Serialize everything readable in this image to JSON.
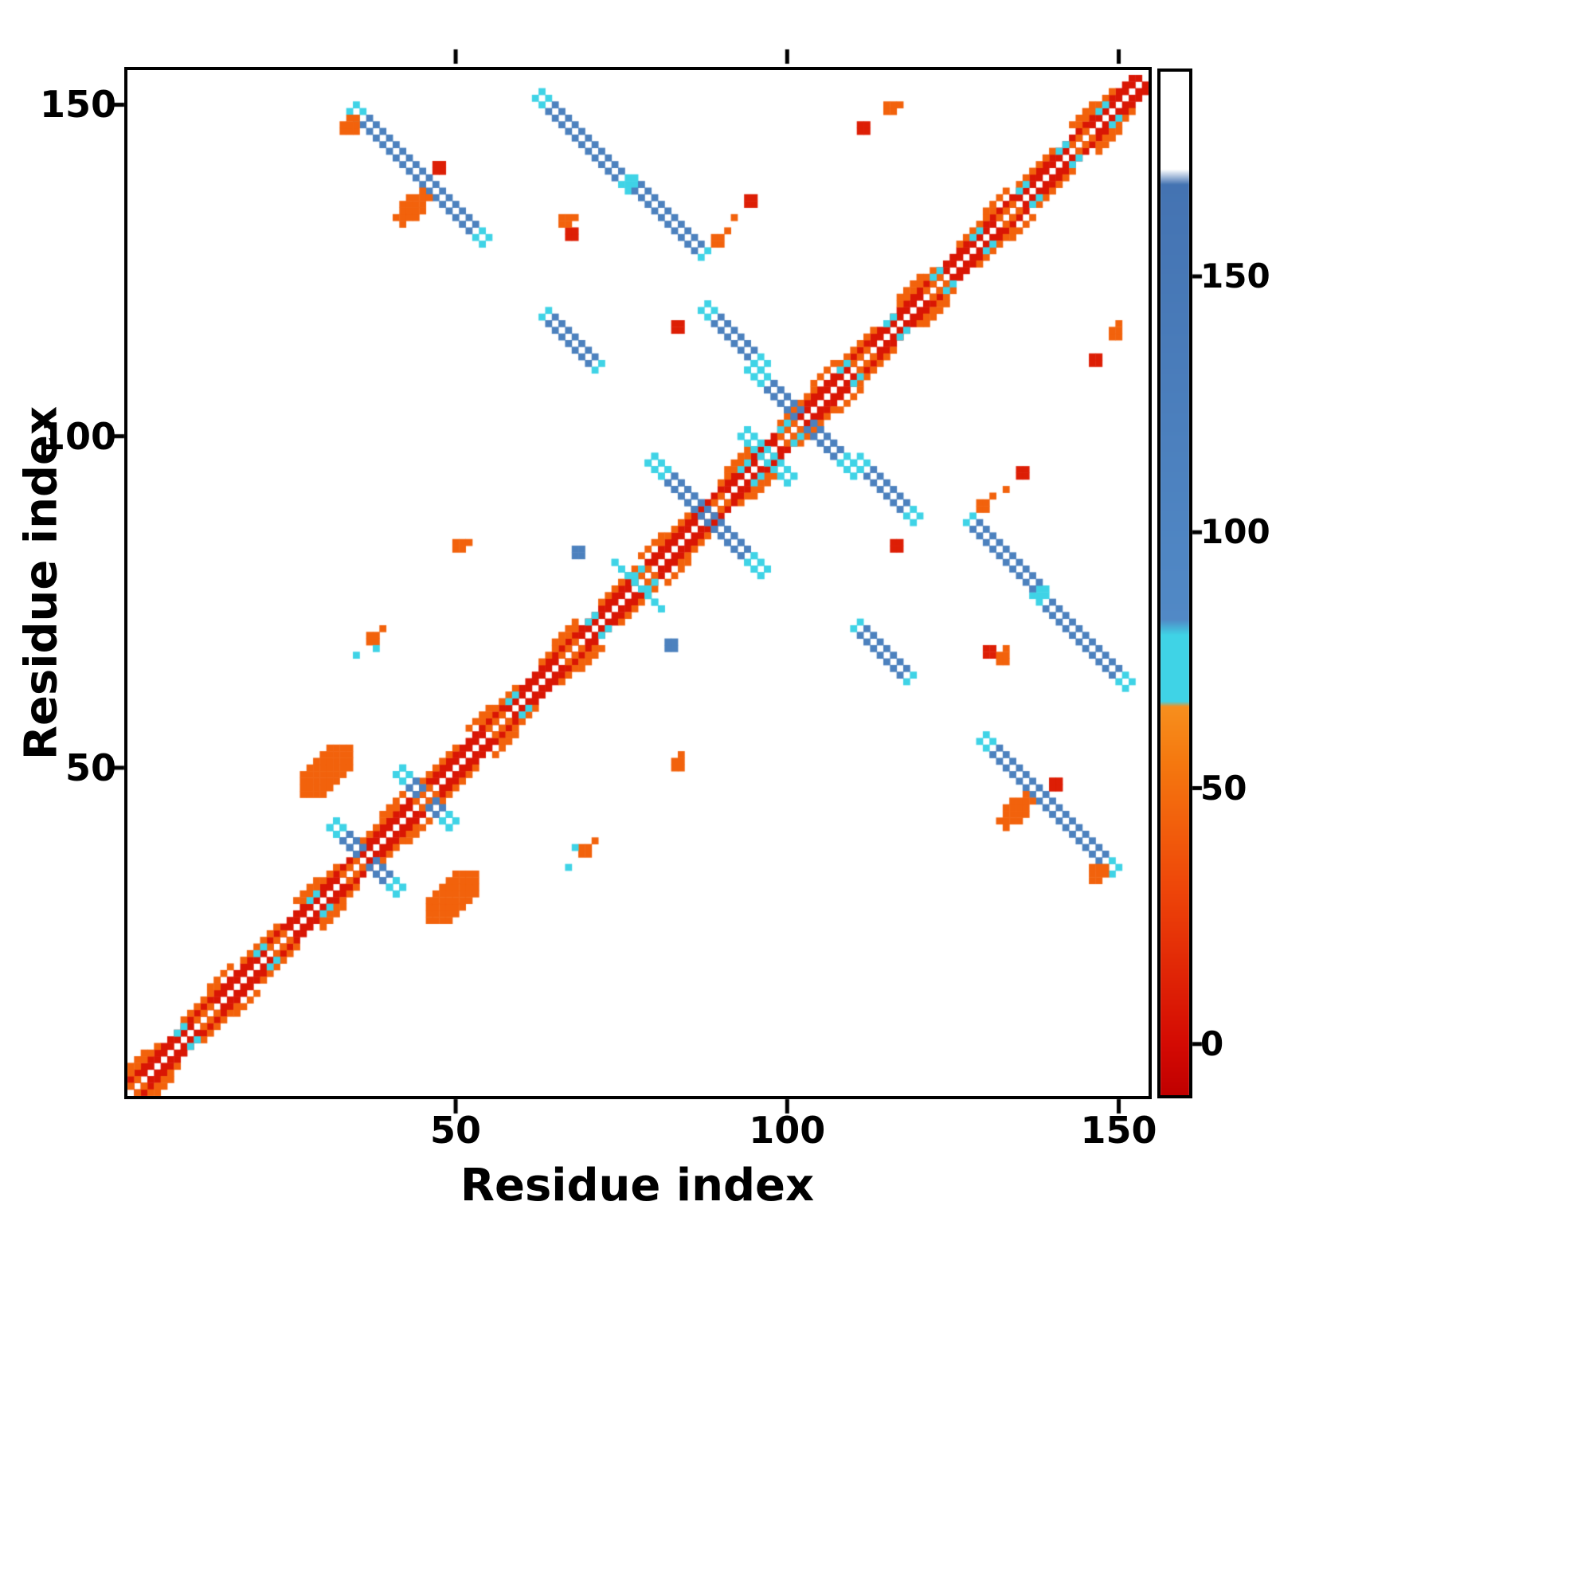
{
  "chart_data": {
    "type": "heatmap",
    "title": "",
    "xlabel": "Residue index",
    "ylabel": "Residue index",
    "n_residues": 154,
    "xlim": [
      1,
      154
    ],
    "ylim": [
      1,
      154
    ],
    "xticks": [
      50,
      100,
      150
    ],
    "yticks": [
      50,
      100,
      150
    ],
    "grid": false,
    "symmetric": true,
    "background": "#ffffff",
    "border_color": "#000000",
    "colorbar": {
      "ticks": [
        0,
        50,
        100,
        150
      ],
      "vmin": -10,
      "vmax": 190,
      "stops": [
        [
          -10,
          "#c00000"
        ],
        [
          0,
          "#d40a03"
        ],
        [
          30,
          "#ee4509"
        ],
        [
          55,
          "#f5780f"
        ],
        [
          66,
          "#f78f1d"
        ],
        [
          67,
          "#3fd3e6"
        ],
        [
          80,
          "#3fd3e6"
        ],
        [
          83,
          "#5189c6"
        ],
        [
          168,
          "#4473b2"
        ],
        [
          171,
          "#ffffff"
        ],
        [
          190,
          "#ffffff"
        ]
      ]
    },
    "values_legend": {
      "near_diagonal_red": 6,
      "orange": 44,
      "cyan": 73,
      "blue": 115
    },
    "tip_value": 73,
    "speckle_value": 73,
    "diag_bands": [
      {
        "d": [
          1,
          2
        ],
        "value": 6,
        "period": 1,
        "on": 1
      },
      {
        "d": [
          3,
          3
        ],
        "value": 44,
        "period": 9,
        "on": 6
      },
      {
        "d": [
          4,
          4
        ],
        "value": 44,
        "period": 13,
        "on": 4
      },
      {
        "d": [
          1,
          1
        ],
        "value": 44,
        "period": 11,
        "on": 3
      }
    ],
    "diag_speckles": [
      8,
      20,
      28,
      44,
      58,
      70,
      77,
      93,
      99,
      108,
      115,
      122,
      128,
      135,
      141,
      147
    ],
    "antidiagonal_segments": [
      {
        "x": 34,
        "y": 149,
        "len": 21,
        "thick": 2,
        "value": 115,
        "tip": 2
      },
      {
        "x": 62,
        "y": 151,
        "len": 15,
        "thick": 2,
        "value": 115,
        "tip": 2
      },
      {
        "x": 76,
        "y": 138,
        "len": 12,
        "thick": 2,
        "value": 115,
        "tip": 1
      },
      {
        "x": 63,
        "y": 118,
        "len": 9,
        "thick": 2,
        "value": 115,
        "tip": 1
      },
      {
        "x": 87,
        "y": 119,
        "len": 10,
        "thick": 2,
        "value": 115,
        "tip": 2
      },
      {
        "x": 79,
        "y": 96,
        "len": 18,
        "thick": 2,
        "value": 115,
        "tip": 3
      },
      {
        "x": 94,
        "y": 110,
        "len": 17,
        "thick": 2,
        "value": 115,
        "tip": 3
      },
      {
        "x": 31,
        "y": 41,
        "len": 11,
        "thick": 2,
        "value": 115,
        "tip": 2
      },
      {
        "x": 41,
        "y": 49,
        "len": 9,
        "thick": 2,
        "value": 115,
        "tip": 2
      },
      {
        "x": 93,
        "y": 100,
        "len": 8,
        "thick": 2,
        "value": 73,
        "tip": 0
      },
      {
        "x": 74,
        "y": 81,
        "len": 8,
        "thick": 1,
        "value": 73,
        "tip": 0
      }
    ],
    "blobs": [
      {
        "cx": 30.5,
        "cy": 49.5,
        "rx": 5.0,
        "ry": 2.6,
        "value": 44
      },
      {
        "cx": 43.5,
        "cy": 134.5,
        "rx": 3.2,
        "ry": 1.6,
        "value": 44
      },
      {
        "cx": 34.2,
        "cy": 146.8,
        "rx": 1.8,
        "ry": 1.2,
        "value": 44
      }
    ],
    "points": [
      {
        "x": 47,
        "y": 140,
        "value": 10,
        "size": 2
      },
      {
        "x": 83,
        "y": 116,
        "value": 10,
        "size": 2
      },
      {
        "x": 94,
        "y": 135,
        "value": 10,
        "size": 2
      },
      {
        "x": 111,
        "y": 146,
        "value": 10,
        "size": 2
      },
      {
        "x": 130,
        "y": 67,
        "value": 10,
        "size": 2
      },
      {
        "x": 140,
        "y": 47,
        "value": 10,
        "size": 2
      },
      {
        "x": 50,
        "y": 83,
        "value": 44,
        "size": 2
      },
      {
        "x": 52,
        "y": 84,
        "value": 44,
        "size": 1
      },
      {
        "x": 37,
        "y": 69,
        "value": 44,
        "size": 2
      },
      {
        "x": 39,
        "y": 71,
        "value": 44,
        "size": 1
      },
      {
        "x": 35,
        "y": 67,
        "value": 73,
        "size": 1
      },
      {
        "x": 38,
        "y": 68,
        "value": 73,
        "size": 1
      },
      {
        "x": 66,
        "y": 132,
        "value": 44,
        "size": 2
      },
      {
        "x": 68,
        "y": 133,
        "value": 44,
        "size": 1
      },
      {
        "x": 89,
        "y": 129,
        "value": 44,
        "size": 2
      },
      {
        "x": 91,
        "y": 131,
        "value": 44,
        "size": 1
      },
      {
        "x": 92,
        "y": 133,
        "value": 44,
        "size": 1
      },
      {
        "x": 115,
        "y": 149,
        "value": 44,
        "size": 2
      },
      {
        "x": 117,
        "y": 150,
        "value": 44,
        "size": 1
      },
      {
        "x": 68,
        "y": 82,
        "value": 115,
        "size": 2
      }
    ]
  }
}
